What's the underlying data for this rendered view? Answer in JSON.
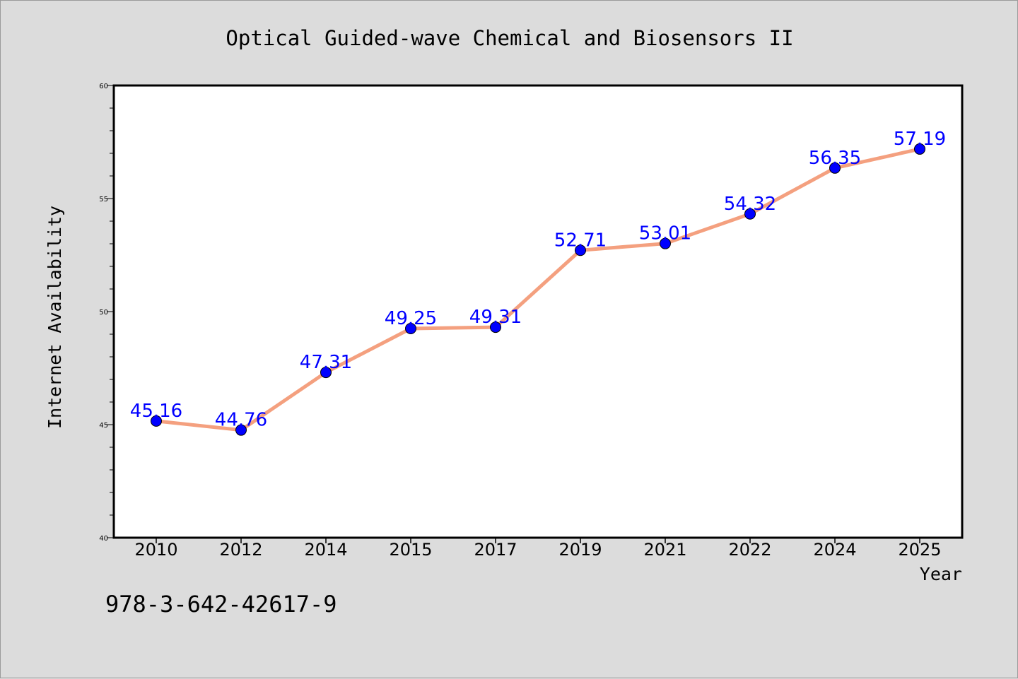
{
  "chart_data": {
    "type": "line",
    "title": "Optical Guided-wave Chemical and Biosensors II",
    "xlabel": "Year",
    "ylabel": "Internet Availability",
    "categories": [
      "2010",
      "2012",
      "2014",
      "2015",
      "2017",
      "2019",
      "2021",
      "2022",
      "2024",
      "2025"
    ],
    "values": [
      45.16,
      44.76,
      47.31,
      49.25,
      49.31,
      52.71,
      53.01,
      54.32,
      56.35,
      57.19
    ],
    "data_labels": [
      "45.16",
      "44.76",
      "47.31",
      "49.25",
      "49.31",
      "52.71",
      "53.01",
      "54.32",
      "56.35",
      "57.19"
    ],
    "ylim": [
      40,
      60
    ],
    "yticks": [
      40,
      45,
      50,
      55,
      60
    ],
    "ytick_labels": [
      "40",
      "45",
      "50",
      "55",
      "60"
    ],
    "grid": false,
    "line_color": "#f4a07f",
    "marker_color": "#0000ff",
    "label_color": "#0000ff"
  },
  "footer": {
    "isbn": "978-3-642-42617-9"
  }
}
